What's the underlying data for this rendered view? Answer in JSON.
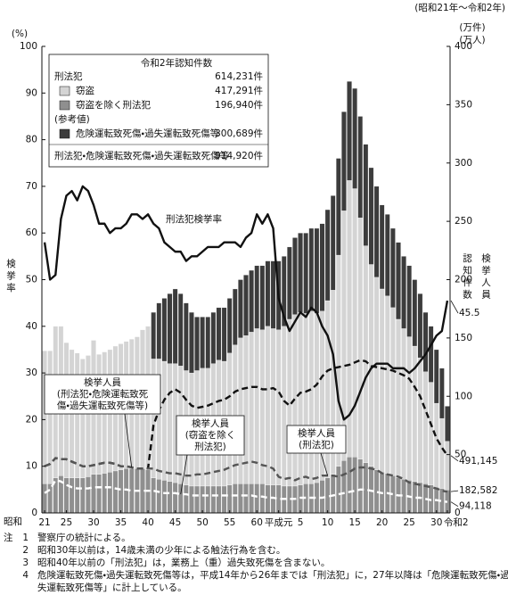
{
  "chart_data": {
    "type": "combo",
    "period": "(昭和21年～令和2年)",
    "y_unit": "(%)",
    "y2_units": [
      "(万件)",
      "(万人)"
    ],
    "ylabel": "検挙率",
    "y2labels": [
      "認知件数",
      "検挙人員"
    ],
    "x_era_label": "昭和",
    "categories": [
      "21",
      null,
      null,
      null,
      "25",
      null,
      null,
      null,
      null,
      "30",
      null,
      null,
      null,
      null,
      "35",
      null,
      null,
      null,
      null,
      "40",
      null,
      null,
      null,
      null,
      "45",
      null,
      null,
      null,
      null,
      "50",
      null,
      null,
      null,
      null,
      "55",
      null,
      null,
      null,
      null,
      "60",
      null,
      null,
      null,
      "平成元",
      null,
      null,
      null,
      "5",
      null,
      null,
      null,
      null,
      "10",
      null,
      null,
      null,
      null,
      "15",
      null,
      null,
      null,
      null,
      "20",
      null,
      null,
      null,
      null,
      "25",
      null,
      null,
      null,
      null,
      "30",
      null,
      "令和2"
    ],
    "ylim": [
      0,
      100
    ],
    "yticks": [
      0,
      10,
      20,
      30,
      40,
      50,
      60,
      70,
      80,
      90,
      100
    ],
    "y2lim": [
      0,
      400
    ],
    "y2ticks": [
      0,
      50,
      100,
      150,
      200,
      250,
      300,
      350,
      400
    ],
    "legend": {
      "title": "令和2年認知件数",
      "total_label": "刑法犯",
      "total_count": "614,231件",
      "reference_label": "(参考値)",
      "grand_label": "刑法犯・危険運転致死傷・過失運転致死傷等",
      "grand_count": "914,920件"
    },
    "series": [
      {
        "name": "窃盗を除く刑法犯",
        "type": "bar",
        "axis": "y2",
        "color": "#8f8f8f",
        "legend_count": "196,940件",
        "values": [
          25,
          25,
          30,
          32,
          30,
          30,
          30,
          30,
          31,
          33,
          33,
          34,
          35,
          36,
          37,
          38,
          38,
          38,
          38,
          37,
          30,
          29,
          28,
          27,
          26,
          25,
          24,
          23,
          23,
          23,
          23,
          23,
          23,
          23,
          24,
          25,
          25,
          25,
          25,
          25,
          25,
          24,
          24,
          24,
          23,
          23,
          23,
          24,
          25,
          25,
          26,
          28,
          30,
          33,
          40,
          45,
          48,
          48,
          46,
          43,
          40,
          37,
          35,
          34,
          32,
          30,
          29,
          28,
          27,
          26,
          25,
          24,
          22,
          21,
          19.694
        ]
      },
      {
        "name": "窃盗",
        "type": "bar",
        "axis": "y2",
        "color": "#d4d4d4",
        "legend_count": "417,291件",
        "values": [
          114,
          114,
          130,
          128,
          116,
          110,
          107,
          102,
          104,
          115,
          103,
          104,
          105,
          107,
          108,
          109,
          111,
          113,
          119,
          123,
          102,
          103,
          102,
          101,
          102,
          101,
          98,
          97,
          99,
          101,
          101,
          105,
          108,
          107,
          113,
          119,
          125,
          127,
          130,
          133,
          132,
          136,
          134,
          133,
          137,
          143,
          147,
          148,
          146,
          148,
          145,
          145,
          152,
          158,
          181,
          214,
          237,
          230,
          207,
          186,
          173,
          165,
          157,
          152,
          144,
          136,
          129,
          123,
          116,
          107,
          96,
          88,
          72,
          60,
          41.7291
        ]
      },
      {
        "name": "危険運転致死傷・過失運転致死傷等",
        "type": "bar",
        "axis": "y2",
        "color": "#3c3c3c",
        "legend_count": "300,689件",
        "values": [
          null,
          null,
          null,
          null,
          null,
          null,
          null,
          null,
          null,
          null,
          null,
          null,
          null,
          null,
          null,
          null,
          null,
          null,
          null,
          null,
          40,
          48,
          54,
          60,
          64,
          62,
          58,
          52,
          46,
          44,
          44,
          44,
          45,
          46,
          47,
          48,
          50,
          52,
          53,
          54,
          55,
          56,
          58,
          59,
          60,
          62,
          66,
          68,
          69,
          71,
          73,
          75,
          78,
          81,
          83,
          85,
          85,
          86,
          87,
          87,
          83,
          78,
          72,
          70,
          68,
          66,
          62,
          61,
          57,
          55,
          51,
          48,
          46,
          43,
          30.0689
        ]
      },
      {
        "name": "刑法犯検挙率",
        "type": "line",
        "color": "#111111",
        "line_style": "solid",
        "end_label": "45.5",
        "values": [
          58,
          50,
          51,
          63,
          68,
          69,
          67,
          70,
          69,
          66,
          62,
          62,
          60,
          61,
          61,
          62,
          64,
          64,
          63,
          64,
          62,
          61,
          58,
          57,
          56,
          56,
          54,
          55,
          55,
          56,
          57,
          57,
          57,
          58,
          58,
          58,
          57,
          59,
          60,
          64,
          62,
          64,
          61,
          46,
          42,
          39,
          41,
          43,
          42,
          44,
          43,
          40,
          38,
          34,
          24,
          20,
          21,
          23,
          26,
          29,
          31,
          32,
          32,
          32,
          31,
          31,
          31,
          30,
          31,
          32.5,
          34,
          36,
          38,
          39,
          45.5
        ]
      },
      {
        "label_lines": [
          "検挙人員",
          "(刑法犯・危険運転致死",
          "傷・過失運転致死傷等)"
        ],
        "type": "line",
        "axis": "y2",
        "color": "#111111",
        "line_style": "dashed",
        "end_label": "491,145",
        "values": [
          40,
          42,
          47,
          46,
          46,
          44,
          42,
          40,
          40,
          41,
          42,
          43,
          43,
          42,
          40,
          40,
          39,
          38,
          38,
          38,
          75,
          88,
          97,
          103,
          106,
          103,
          97,
          92,
          90,
          91,
          92,
          94,
          96,
          97,
          100,
          104,
          106,
          107,
          108,
          108,
          106,
          106,
          107,
          104,
          96,
          92,
          98,
          103,
          104,
          106,
          110,
          117,
          122,
          124,
          125,
          126,
          127,
          129,
          131,
          130,
          126,
          125,
          124,
          123,
          122,
          120,
          118,
          115,
          108,
          100,
          88,
          76,
          64,
          56,
          49.1145
        ]
      },
      {
        "label_lines": [
          "検挙人員",
          "(刑法犯)"
        ],
        "type": "line",
        "axis": "y2",
        "color": "#555555",
        "line_style": "dashed",
        "end_label": "182,582",
        "values": [
          40,
          42,
          47,
          46,
          46,
          44,
          42,
          40,
          40,
          41,
          42,
          43,
          43,
          42,
          40,
          40,
          39,
          38,
          38,
          38,
          38,
          36,
          35,
          34,
          34,
          33,
          32,
          32,
          33,
          33,
          34,
          35,
          36,
          37,
          39,
          41,
          42,
          43,
          44,
          43,
          41,
          40,
          38,
          31,
          29,
          30,
          28,
          30,
          31,
          29,
          30,
          32,
          32,
          32,
          31,
          33,
          35,
          38,
          39,
          39,
          38,
          37,
          34,
          33,
          32,
          31,
          29,
          26,
          25,
          24,
          23,
          22,
          21,
          19,
          18.2582
        ]
      },
      {
        "label_lines": [
          "検挙人員",
          "(窃盗を除く",
          "刑法犯)"
        ],
        "type": "line",
        "axis": "y2",
        "color": "#ffffff",
        "line_style": "dashed",
        "end_label": "94,118",
        "values": [
          17,
          20,
          28,
          27,
          24,
          22,
          21,
          21,
          21,
          22,
          22,
          22,
          22,
          21,
          20,
          20,
          19,
          19,
          19,
          19,
          19,
          18,
          17,
          17,
          17,
          16,
          16,
          15,
          15,
          15,
          15,
          15,
          15,
          15,
          15,
          15,
          15,
          15,
          15,
          14,
          14,
          13,
          13,
          12,
          12,
          12,
          12,
          13,
          13,
          13,
          13,
          13,
          14,
          15,
          16,
          17,
          18,
          19,
          20,
          20,
          19,
          18,
          17,
          17,
          16,
          15,
          15,
          14,
          13,
          13,
          12,
          11,
          11,
          10,
          9.4118
        ]
      }
    ],
    "notes": {
      "head": "注",
      "items": [
        {
          "num": "1",
          "lines": [
            "警察庁の統計による。"
          ]
        },
        {
          "num": "2",
          "lines": [
            "昭和30年以前は，14歳未満の少年による触法行為を含む。"
          ]
        },
        {
          "num": "3",
          "lines": [
            "昭和40年以前の「刑法犯」は，業務上（重）過失致死傷を含まない。"
          ]
        },
        {
          "num": "4",
          "lines": [
            "危険運転致死傷・過失運転致死傷等は，平成14年から26年までは「刑法犯」に，27年以降は「危険運転致死傷・過",
            "失運転致死傷等」に計上している。"
          ]
        }
      ]
    }
  }
}
